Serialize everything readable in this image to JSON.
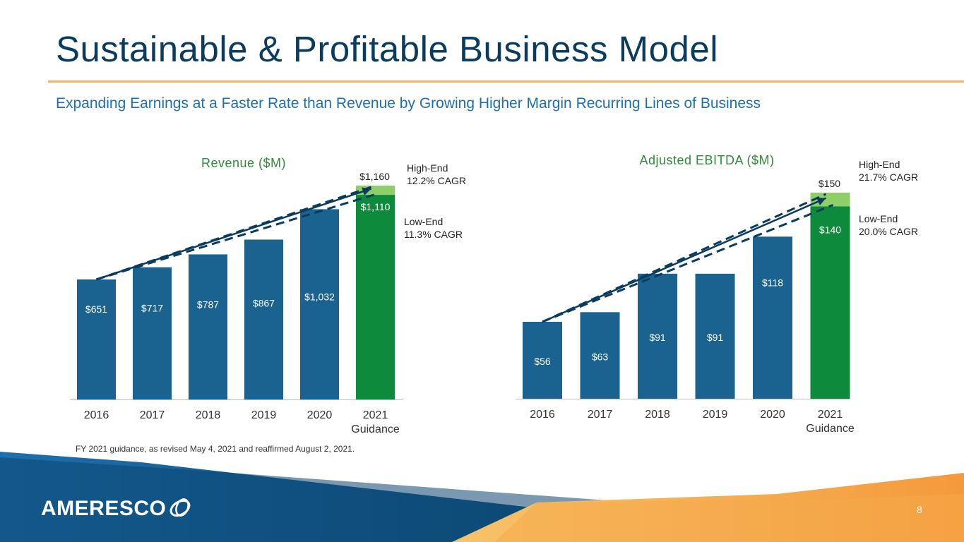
{
  "slide": {
    "title": "Sustainable & Profitable Business Model",
    "subtitle": "Expanding Earnings at a Faster Rate than Revenue by Growing Higher Margin Recurring Lines of Business",
    "footnote": "FY 2021 guidance, as revised May 4, 2021 and reaffirmed August 2, 2021.",
    "page_number": "8",
    "logo_text": "AMERESCO"
  },
  "colors": {
    "bar": "#1a628f",
    "guidance_low": "#0e8a3c",
    "guidance_high": "#8fcf6a",
    "title": "#0b3c5d",
    "subtitle": "#1f6fb0",
    "rule": "#f2b766",
    "arrow": "#0b3c5d",
    "axis_text": "#333333"
  },
  "chart_data": [
    {
      "type": "bar",
      "title": "Revenue ($M)",
      "categories": [
        "2016",
        "2017",
        "2018",
        "2019",
        "2020",
        "2021"
      ],
      "category_sublabels": [
        "",
        "",
        "",
        "",
        "",
        "Guidance"
      ],
      "values": [
        651,
        717,
        787,
        867,
        1032,
        1110
      ],
      "labels": [
        "$651",
        "$717",
        "$787",
        "$867",
        "$1,032",
        "$1,110"
      ],
      "guidance_high": 1160,
      "guidance_high_label": "$1,160",
      "ylim": [
        0,
        1160
      ],
      "annotations": [
        {
          "line1": "High-End",
          "line2": "12.2% CAGR"
        },
        {
          "line1": "Low-End",
          "line2": "11.3% CAGR"
        }
      ]
    },
    {
      "type": "bar",
      "title": "Adjusted EBITDA ($M)",
      "categories": [
        "2016",
        "2017",
        "2018",
        "2019",
        "2020",
        "2021"
      ],
      "category_sublabels": [
        "",
        "",
        "",
        "",
        "",
        "Guidance"
      ],
      "values": [
        56,
        63,
        91,
        91,
        118,
        140
      ],
      "labels": [
        "$56",
        "$63",
        "$91",
        "$91",
        "$118",
        "$140"
      ],
      "guidance_high": 150,
      "guidance_high_label": "$150",
      "ylim": [
        0,
        150
      ],
      "annotations": [
        {
          "line1": "High-End",
          "line2": "21.7% CAGR"
        },
        {
          "line1": "Low-End",
          "line2": "20.0% CAGR"
        }
      ]
    }
  ]
}
